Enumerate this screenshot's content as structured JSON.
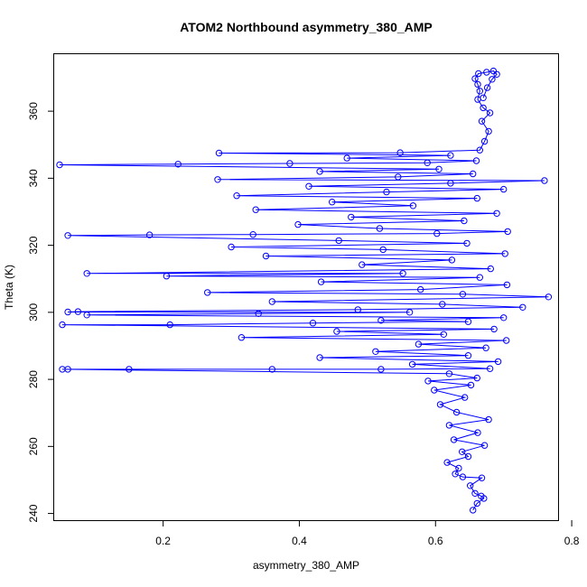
{
  "chart_data": {
    "type": "scatter",
    "title": "ATOM2 Northbound asymmetry_380_AMP",
    "xlabel": "asymmetry_380_AMP",
    "ylabel": "Theta (K)",
    "xlim": [
      0.04,
      0.78
    ],
    "ylim": [
      238,
      377
    ],
    "x_ticks": [
      0.2,
      0.4,
      0.6,
      0.8
    ],
    "y_ticks": [
      240,
      260,
      280,
      300,
      320,
      340,
      360
    ],
    "x_tick_labels": [
      "0.2",
      "0.4",
      "0.6",
      "0.8"
    ],
    "y_tick_labels": [
      "240",
      "260",
      "280",
      "300",
      "320",
      "340",
      "360"
    ],
    "grid": false,
    "legend": "none",
    "color": "#0000ff",
    "markers": "open-circle",
    "connected": true,
    "series": [
      {
        "points": [
          [
            0.655,
            241.0
          ],
          [
            0.661,
            243.0
          ],
          [
            0.671,
            244.5
          ],
          [
            0.667,
            245.2
          ],
          [
            0.658,
            246.0
          ],
          [
            0.651,
            248.3
          ],
          [
            0.668,
            250.6
          ],
          [
            0.64,
            250.9
          ],
          [
            0.629,
            251.8
          ],
          [
            0.634,
            253.5
          ],
          [
            0.617,
            255.2
          ],
          [
            0.648,
            257.0
          ],
          [
            0.639,
            258.4
          ],
          [
            0.672,
            260.3
          ],
          [
            0.627,
            262.0
          ],
          [
            0.662,
            264.1
          ],
          [
            0.62,
            266.3
          ],
          [
            0.678,
            268.0
          ],
          [
            0.631,
            270.2
          ],
          [
            0.607,
            272.5
          ],
          [
            0.643,
            274.6
          ],
          [
            0.598,
            276.8
          ],
          [
            0.652,
            278.3
          ],
          [
            0.589,
            279.5
          ],
          [
            0.661,
            280.4
          ],
          [
            0.62,
            281.7
          ],
          [
            0.052,
            283.0
          ],
          [
            0.06,
            283.0
          ],
          [
            0.15,
            283.0
          ],
          [
            0.36,
            283.0
          ],
          [
            0.52,
            283.0
          ],
          [
            0.68,
            283.2
          ],
          [
            0.566,
            284.5
          ],
          [
            0.692,
            285.3
          ],
          [
            0.43,
            286.5
          ],
          [
            0.648,
            287.1
          ],
          [
            0.512,
            288.3
          ],
          [
            0.674,
            289.4
          ],
          [
            0.575,
            290.5
          ],
          [
            0.704,
            291.6
          ],
          [
            0.315,
            292.5
          ],
          [
            0.612,
            293.4
          ],
          [
            0.455,
            294.3
          ],
          [
            0.686,
            295.0
          ],
          [
            0.052,
            296.3
          ],
          [
            0.21,
            296.3
          ],
          [
            0.42,
            296.8
          ],
          [
            0.648,
            297.2
          ],
          [
            0.52,
            297.6
          ],
          [
            0.7,
            298.4
          ],
          [
            0.088,
            299.2
          ],
          [
            0.34,
            299.6
          ],
          [
            0.562,
            300.0
          ],
          [
            0.06,
            300.1
          ],
          [
            0.075,
            300.2
          ],
          [
            0.486,
            300.8
          ],
          [
            0.728,
            301.5
          ],
          [
            0.61,
            302.4
          ],
          [
            0.36,
            303.2
          ],
          [
            0.766,
            304.6
          ],
          [
            0.64,
            305.4
          ],
          [
            0.265,
            305.9
          ],
          [
            0.578,
            306.8
          ],
          [
            0.705,
            308.2
          ],
          [
            0.432,
            309.1
          ],
          [
            0.665,
            310.4
          ],
          [
            0.205,
            310.8
          ],
          [
            0.552,
            311.6
          ],
          [
            0.088,
            311.6
          ],
          [
            0.681,
            313.0
          ],
          [
            0.492,
            314.2
          ],
          [
            0.624,
            315.6
          ],
          [
            0.351,
            316.8
          ],
          [
            0.702,
            317.5
          ],
          [
            0.523,
            318.7
          ],
          [
            0.3,
            319.5
          ],
          [
            0.646,
            320.6
          ],
          [
            0.458,
            321.4
          ],
          [
            0.06,
            322.9
          ],
          [
            0.18,
            323.1
          ],
          [
            0.332,
            323.2
          ],
          [
            0.602,
            323.5
          ],
          [
            0.706,
            324.1
          ],
          [
            0.518,
            325.0
          ],
          [
            0.398,
            326.2
          ],
          [
            0.642,
            327.3
          ],
          [
            0.476,
            328.4
          ],
          [
            0.69,
            329.5
          ],
          [
            0.336,
            330.6
          ],
          [
            0.567,
            331.8
          ],
          [
            0.448,
            332.9
          ],
          [
            0.661,
            334.0
          ],
          [
            0.308,
            334.8
          ],
          [
            0.528,
            335.9
          ],
          [
            0.7,
            336.7
          ],
          [
            0.414,
            337.6
          ],
          [
            0.622,
            338.5
          ],
          [
            0.76,
            339.3
          ],
          [
            0.28,
            339.6
          ],
          [
            0.545,
            340.4
          ],
          [
            0.655,
            341.3
          ],
          [
            0.43,
            342.0
          ],
          [
            0.605,
            342.7
          ],
          [
            0.048,
            344.0
          ],
          [
            0.222,
            344.2
          ],
          [
            0.386,
            344.4
          ],
          [
            0.588,
            344.6
          ],
          [
            0.66,
            345.2
          ],
          [
            0.47,
            346.0
          ],
          [
            0.622,
            346.8
          ],
          [
            0.282,
            347.5
          ],
          [
            0.548,
            347.6
          ],
          [
            0.665,
            348.4
          ],
          [
            0.672,
            351.0
          ],
          [
            0.678,
            354.0
          ],
          [
            0.668,
            357.0
          ],
          [
            0.68,
            359.5
          ],
          [
            0.67,
            361.0
          ],
          [
            0.662,
            363.5
          ],
          [
            0.665,
            366.0
          ],
          [
            0.662,
            368.0
          ],
          [
            0.658,
            369.7
          ],
          [
            0.663,
            371.2
          ],
          [
            0.675,
            371.6
          ],
          [
            0.685,
            372.0
          ],
          [
            0.69,
            371.0
          ],
          [
            0.683,
            369.5
          ],
          [
            0.676,
            367.0
          ],
          [
            0.67,
            364.0
          ]
        ]
      }
    ]
  }
}
